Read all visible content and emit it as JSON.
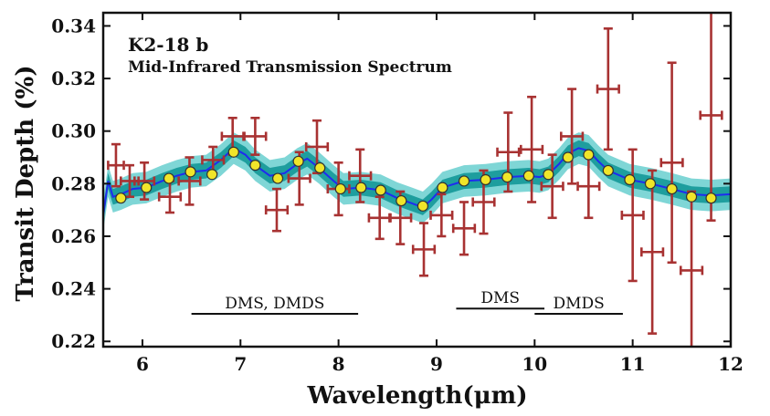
{
  "chart_data": {
    "type": "scatter",
    "title": "K2-18 b",
    "subtitle": "Mid-Infrared Transmission Spectrum",
    "xlabel": "Wavelength(μm)",
    "ylabel": "Transit Depth (%)",
    "xlim": [
      5.6,
      12.0
    ],
    "ylim": [
      0.218,
      0.345
    ],
    "xticks": [
      6,
      7,
      8,
      9,
      10,
      11,
      12
    ],
    "yticks": [
      0.22,
      0.24,
      0.26,
      0.28,
      0.3,
      0.32,
      0.34
    ],
    "xtick_labels": [
      "6",
      "7",
      "8",
      "9",
      "10",
      "11",
      "12"
    ],
    "ytick_labels": [
      "0.22",
      "0.24",
      "0.26",
      "0.28",
      "0.30",
      "0.32",
      "0.34"
    ],
    "grid": false,
    "colors": {
      "data": "#a83232",
      "binned_face": "#f0e52a",
      "binned_edge": "#333333",
      "model_line": "#1f2bf0",
      "band_inner": "#1e9e9e",
      "band_outer": "#7fd6d6"
    },
    "series": [
      {
        "type": "errorbar",
        "x": [
          5.73,
          5.87,
          6.02,
          6.28,
          6.48,
          6.72,
          6.92,
          7.15,
          7.37,
          7.6,
          7.78,
          8.0,
          8.22,
          8.42,
          8.63,
          8.87,
          9.05,
          9.28,
          9.48,
          9.73,
          9.97,
          10.18,
          10.38,
          10.55,
          10.75,
          11.0,
          11.2,
          11.4,
          11.6,
          11.8
        ],
        "y": [
          0.287,
          0.281,
          0.281,
          0.275,
          0.281,
          0.289,
          0.298,
          0.298,
          0.27,
          0.282,
          0.294,
          0.278,
          0.283,
          0.267,
          0.267,
          0.255,
          0.268,
          0.263,
          0.273,
          0.292,
          0.293,
          0.279,
          0.298,
          0.279,
          0.316,
          0.268,
          0.254,
          0.288,
          0.247,
          0.306
        ],
        "yerr": [
          0.008,
          0.006,
          0.007,
          0.006,
          0.009,
          0.005,
          0.007,
          0.007,
          0.008,
          0.01,
          0.01,
          0.01,
          0.01,
          0.008,
          0.01,
          0.01,
          0.008,
          0.01,
          0.012,
          0.015,
          0.02,
          0.012,
          0.018,
          0.012,
          0.023,
          0.025,
          0.031,
          0.038,
          0.03,
          0.04
        ],
        "xerr": [
          0.08,
          0.09,
          0.1,
          0.11,
          0.11,
          0.11,
          0.11,
          0.11,
          0.11,
          0.11,
          0.11,
          0.11,
          0.11,
          0.11,
          0.11,
          0.11,
          0.11,
          0.11,
          0.11,
          0.11,
          0.11,
          0.11,
          0.11,
          0.11,
          0.11,
          0.11,
          0.11,
          0.11,
          0.11,
          0.11
        ]
      },
      {
        "type": "binned",
        "x": [
          5.78,
          6.04,
          6.27,
          6.49,
          6.71,
          6.93,
          7.15,
          7.38,
          7.59,
          7.81,
          8.02,
          8.23,
          8.43,
          8.64,
          8.86,
          9.06,
          9.28,
          9.5,
          9.72,
          9.94,
          10.14,
          10.34,
          10.55,
          10.75,
          10.97,
          11.18,
          11.4,
          11.6,
          11.8
        ],
        "y": [
          0.2745,
          0.2785,
          0.282,
          0.2845,
          0.2835,
          0.292,
          0.287,
          0.282,
          0.2885,
          0.286,
          0.278,
          0.2785,
          0.2775,
          0.2735,
          0.2715,
          0.2785,
          0.281,
          0.2815,
          0.2825,
          0.283,
          0.2835,
          0.29,
          0.291,
          0.285,
          0.2815,
          0.28,
          0.278,
          0.275,
          0.2745
        ]
      },
      {
        "type": "model",
        "x": [
          5.6,
          5.65,
          5.7,
          5.78,
          5.9,
          6.04,
          6.2,
          6.35,
          6.5,
          6.65,
          6.8,
          6.93,
          7.05,
          7.15,
          7.3,
          7.45,
          7.58,
          7.68,
          7.8,
          7.95,
          8.05,
          8.23,
          8.43,
          8.6,
          8.75,
          8.86,
          8.95,
          9.06,
          9.28,
          9.5,
          9.72,
          9.94,
          10.05,
          10.14,
          10.25,
          10.34,
          10.45,
          10.55,
          10.65,
          10.75,
          10.97,
          11.18,
          11.4,
          11.6,
          11.8,
          12.0
        ],
        "y": [
          0.268,
          0.281,
          0.275,
          0.276,
          0.278,
          0.2785,
          0.281,
          0.283,
          0.2845,
          0.285,
          0.289,
          0.2935,
          0.291,
          0.287,
          0.283,
          0.284,
          0.2875,
          0.2895,
          0.286,
          0.281,
          0.278,
          0.2785,
          0.2775,
          0.2745,
          0.2725,
          0.271,
          0.274,
          0.2785,
          0.281,
          0.2815,
          0.2825,
          0.283,
          0.2825,
          0.2835,
          0.2875,
          0.2915,
          0.2935,
          0.2925,
          0.2885,
          0.285,
          0.2815,
          0.28,
          0.278,
          0.276,
          0.2755,
          0.276
        ],
        "band_inner_halfwidth": 0.003,
        "band_outer_halfwidth": 0.006
      }
    ],
    "annotations": [
      {
        "text": "DMS, DMDS",
        "x0": 6.5,
        "x1": 8.2,
        "y": 0.2305
      },
      {
        "text": "DMS",
        "x0": 9.2,
        "x1": 10.1,
        "y": 0.2325
      },
      {
        "text": "DMDS",
        "x0": 10.0,
        "x1": 10.9,
        "y": 0.2305
      }
    ]
  }
}
